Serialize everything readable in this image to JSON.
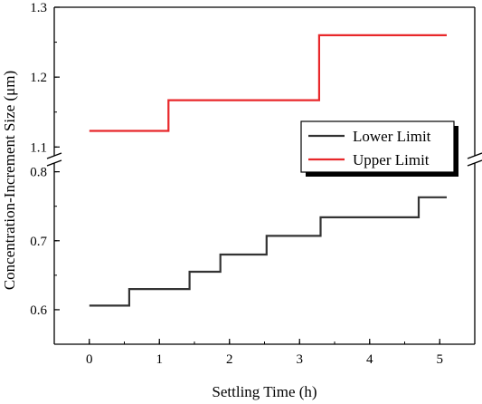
{
  "chart_data": {
    "type": "line",
    "title": "",
    "xlabel": "Settling Time (h)",
    "ylabel": "Concentration-Increment Size (μm)",
    "xlim": [
      -0.5,
      5.5
    ],
    "ylim_lower": [
      0.55,
      0.81
    ],
    "ylim_upper": [
      1.09,
      1.3
    ],
    "y_axis_break": [
      0.81,
      1.09
    ],
    "x_ticks": [
      "0",
      "1",
      "2",
      "3",
      "4",
      "5"
    ],
    "y_ticks_lower": [
      "0.6",
      "0.7",
      "0.8"
    ],
    "y_ticks_upper": [
      "1.1",
      "1.2",
      "1.3"
    ],
    "grid": false,
    "legend": {
      "placement": "right-middle",
      "shadow": true
    },
    "series": [
      {
        "name": "Lower Limit",
        "color": "#333333",
        "step": true,
        "x": [
          0,
          0.57,
          0.57,
          1.43,
          1.43,
          1.87,
          1.87,
          2.53,
          2.53,
          3.3,
          3.3,
          4.7,
          4.7,
          5.1
        ],
        "y": [
          0.606,
          0.606,
          0.63,
          0.63,
          0.655,
          0.655,
          0.68,
          0.68,
          0.707,
          0.707,
          0.734,
          0.734,
          0.763,
          0.763
        ]
      },
      {
        "name": "Upper Limit",
        "color": "#e8272a",
        "step": true,
        "x": [
          0,
          1.13,
          1.13,
          3.28,
          3.28,
          5.1
        ],
        "y": [
          1.123,
          1.123,
          1.167,
          1.167,
          1.26,
          1.26
        ]
      }
    ]
  }
}
